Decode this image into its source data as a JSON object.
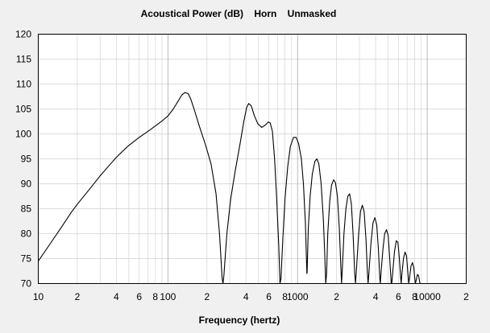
{
  "chart_data": {
    "type": "line",
    "title": "Acoustical Power (dB)    Horn    Unmasked",
    "xlabel": "Frequency (hertz)",
    "ylabel": "",
    "x_scale": "log",
    "xlim": [
      10,
      20000
    ],
    "ylim": [
      70,
      120
    ],
    "grid": true,
    "y_ticks": [
      70,
      75,
      80,
      85,
      90,
      95,
      100,
      105,
      110,
      115,
      120
    ],
    "x_tick_labels": [
      {
        "value": 10,
        "label": "10"
      },
      {
        "value": 20,
        "label": "2"
      },
      {
        "value": 40,
        "label": "4"
      },
      {
        "value": 60,
        "label": "6"
      },
      {
        "value": 80,
        "label": "8"
      },
      {
        "value": 100,
        "label": "100"
      },
      {
        "value": 200,
        "label": "2"
      },
      {
        "value": 400,
        "label": "4"
      },
      {
        "value": 600,
        "label": "6"
      },
      {
        "value": 800,
        "label": "8"
      },
      {
        "value": 1000,
        "label": "1000"
      },
      {
        "value": 2000,
        "label": "2"
      },
      {
        "value": 4000,
        "label": "4"
      },
      {
        "value": 6000,
        "label": "6"
      },
      {
        "value": 8000,
        "label": "8"
      },
      {
        "value": 10000,
        "label": "10000"
      },
      {
        "value": 20000,
        "label": "2"
      }
    ],
    "series": [
      {
        "color": "#000000",
        "points": [
          [
            10,
            74.5
          ],
          [
            12,
            77.5
          ],
          [
            15,
            81.2
          ],
          [
            18,
            84.3
          ],
          [
            20,
            85.9
          ],
          [
            25,
            89.0
          ],
          [
            30,
            91.6
          ],
          [
            35,
            93.6
          ],
          [
            40,
            95.3
          ],
          [
            45,
            96.6
          ],
          [
            50,
            97.7
          ],
          [
            60,
            99.3
          ],
          [
            70,
            100.5
          ],
          [
            80,
            101.6
          ],
          [
            90,
            102.6
          ],
          [
            100,
            103.6
          ],
          [
            110,
            105.0
          ],
          [
            120,
            106.6
          ],
          [
            128,
            107.8
          ],
          [
            135,
            108.3
          ],
          [
            143,
            108.1
          ],
          [
            150,
            107.0
          ],
          [
            160,
            104.8
          ],
          [
            175,
            101.5
          ],
          [
            195,
            97.8
          ],
          [
            215,
            94.0
          ],
          [
            235,
            88.0
          ],
          [
            250,
            80.0
          ],
          [
            262,
            71.0
          ],
          [
            266,
            70.0
          ],
          [
            270,
            71.5
          ],
          [
            285,
            80.0
          ],
          [
            305,
            87.0
          ],
          [
            330,
            92.5
          ],
          [
            360,
            98.0
          ],
          [
            385,
            102.5
          ],
          [
            405,
            105.3
          ],
          [
            420,
            106.1
          ],
          [
            440,
            105.6
          ],
          [
            465,
            103.6
          ],
          [
            495,
            102.0
          ],
          [
            530,
            101.3
          ],
          [
            565,
            101.8
          ],
          [
            595,
            102.4
          ],
          [
            615,
            102.2
          ],
          [
            640,
            100.5
          ],
          [
            665,
            95.0
          ],
          [
            690,
            87.0
          ],
          [
            715,
            78.0
          ],
          [
            732,
            70.0
          ],
          [
            745,
            71.0
          ],
          [
            770,
            79.0
          ],
          [
            800,
            87.0
          ],
          [
            840,
            93.5
          ],
          [
            880,
            97.5
          ],
          [
            930,
            99.3
          ],
          [
            975,
            99.3
          ],
          [
            1020,
            98.0
          ],
          [
            1070,
            95.0
          ],
          [
            1110,
            90.0
          ],
          [
            1150,
            82.0
          ],
          [
            1180,
            72.0
          ],
          [
            1185,
            72.3
          ],
          [
            1210,
            81.0
          ],
          [
            1250,
            87.5
          ],
          [
            1300,
            92.0
          ],
          [
            1360,
            94.5
          ],
          [
            1410,
            95.0
          ],
          [
            1460,
            94.0
          ],
          [
            1520,
            90.0
          ],
          [
            1580,
            83.0
          ],
          [
            1620,
            76.0
          ],
          [
            1650,
            70.0
          ],
          [
            1675,
            72.0
          ],
          [
            1710,
            80.0
          ],
          [
            1770,
            86.5
          ],
          [
            1830,
            89.8
          ],
          [
            1900,
            90.8
          ],
          [
            1960,
            90.2
          ],
          [
            2030,
            87.5
          ],
          [
            2100,
            81.0
          ],
          [
            2160,
            73.0
          ],
          [
            2185,
            70.0
          ],
          [
            2215,
            73.0
          ],
          [
            2280,
            80.0
          ],
          [
            2360,
            85.0
          ],
          [
            2440,
            87.5
          ],
          [
            2520,
            88.0
          ],
          [
            2600,
            86.0
          ],
          [
            2680,
            80.0
          ],
          [
            2760,
            72.0
          ],
          [
            2800,
            70.0
          ],
          [
            2850,
            73.0
          ],
          [
            2960,
            80.0
          ],
          [
            3060,
            84.5
          ],
          [
            3160,
            85.7
          ],
          [
            3260,
            84.5
          ],
          [
            3370,
            79.0
          ],
          [
            3460,
            72.0
          ],
          [
            3500,
            70.0
          ],
          [
            3550,
            72.0
          ],
          [
            3680,
            78.0
          ],
          [
            3820,
            82.2
          ],
          [
            3950,
            83.2
          ],
          [
            4080,
            81.8
          ],
          [
            4200,
            77.0
          ],
          [
            4310,
            71.0
          ],
          [
            4350,
            70.0
          ],
          [
            4400,
            72.0
          ],
          [
            4560,
            77.0
          ],
          [
            4700,
            80.0
          ],
          [
            4850,
            80.8
          ],
          [
            5000,
            79.6
          ],
          [
            5140,
            75.0
          ],
          [
            5280,
            70.0
          ],
          [
            5330,
            70.0
          ],
          [
            5410,
            72.0
          ],
          [
            5600,
            76.5
          ],
          [
            5780,
            78.6
          ],
          [
            5950,
            78.2
          ],
          [
            6100,
            75.0
          ],
          [
            6250,
            71.0
          ],
          [
            6300,
            70.0
          ],
          [
            6360,
            71.5
          ],
          [
            6560,
            75.0
          ],
          [
            6750,
            76.3
          ],
          [
            6930,
            75.5
          ],
          [
            7080,
            72.5
          ],
          [
            7200,
            70.0
          ],
          [
            7300,
            71.0
          ],
          [
            7500,
            73.5
          ],
          [
            7700,
            74.2
          ],
          [
            7880,
            73.2
          ],
          [
            8020,
            71.0
          ],
          [
            8100,
            70.0
          ],
          [
            8200,
            70.5
          ],
          [
            8400,
            71.8
          ],
          [
            8580,
            71.6
          ],
          [
            8750,
            70.3
          ],
          [
            8800,
            70.0
          ]
        ]
      }
    ]
  }
}
